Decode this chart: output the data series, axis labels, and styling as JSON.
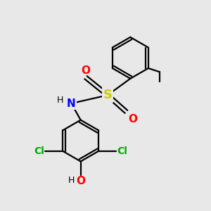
{
  "background_color": "#e8e8e8",
  "bond_color": "#000000",
  "atom_colors": {
    "N": "#0000ff",
    "O": "#ff0000",
    "S": "#cccc00",
    "Cl": "#00aa00",
    "H": "#000000"
  },
  "figsize": [
    3.0,
    3.0
  ],
  "dpi": 100,
  "lw": 1.6
}
